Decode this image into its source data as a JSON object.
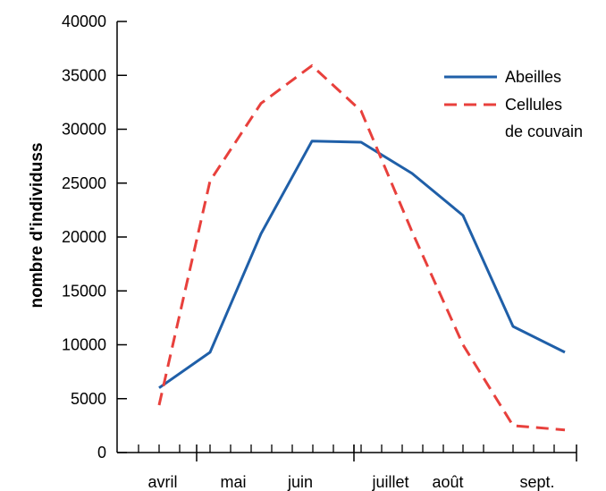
{
  "chart_data": {
    "type": "line",
    "ylabel": "nombre d'individuss",
    "xlabel": "",
    "ylim": [
      0,
      40000
    ],
    "yticks": [
      0,
      5000,
      10000,
      15000,
      20000,
      25000,
      30000,
      35000,
      40000
    ],
    "ytick_labels": [
      "0",
      "5000",
      "10000",
      "15000",
      "20000",
      "25000",
      "30000",
      "35000",
      "40000"
    ],
    "month_labels": [
      "avril",
      "mai",
      "juin",
      "juillet",
      "août",
      "sept."
    ],
    "legend_position": "top-right",
    "grid": false,
    "series": [
      {
        "name": "Abeilles",
        "color": "#1f5fa8",
        "style": "solid",
        "values": [
          6000,
          9300,
          20300,
          28900,
          28800,
          25900,
          22000,
          11700,
          9300
        ]
      },
      {
        "name_lines": [
          "Cellules",
          "de couvain"
        ],
        "color": "#e8403c",
        "style": "dashed",
        "values": [
          4400,
          25200,
          32400,
          35900,
          31700,
          20500,
          10000,
          2500,
          2100
        ]
      }
    ]
  }
}
